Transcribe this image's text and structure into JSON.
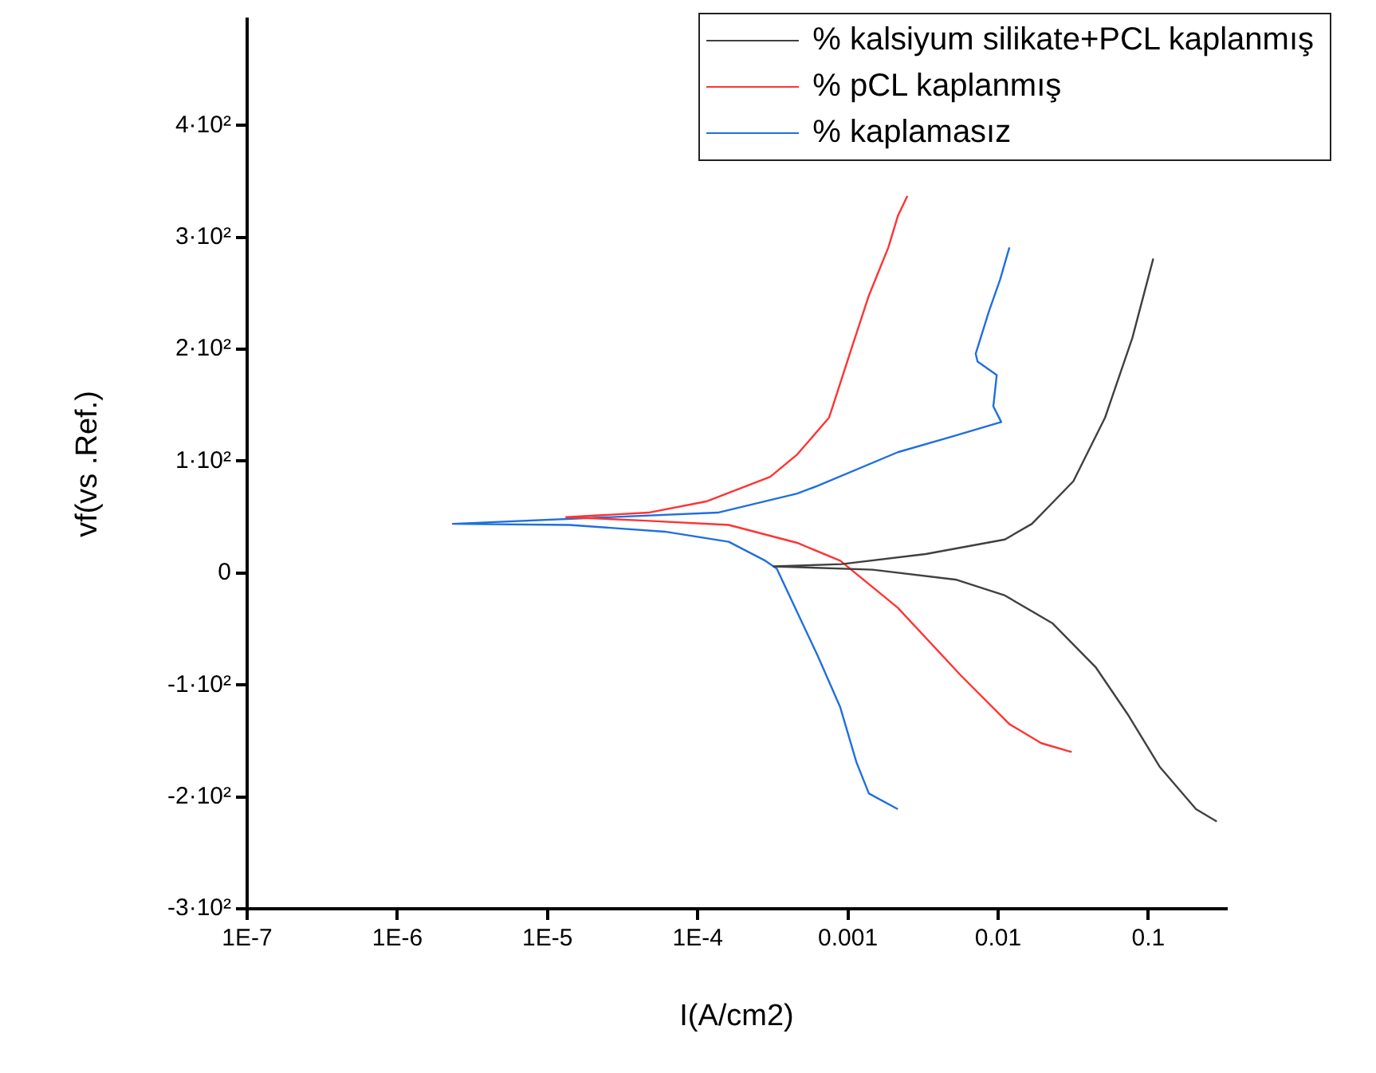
{
  "chart_data": {
    "type": "line",
    "xlabel": "I(A/cm2)",
    "ylabel": "vf(vs .Ref.)",
    "log": "x",
    "grid": false,
    "legend": "top right",
    "marker": "none",
    "line_style": "solid",
    "xlim": [
      1e-07,
      0.33
    ],
    "ylim": [
      -300,
      495
    ],
    "xticks": [
      {
        "value": 1e-07,
        "label": "1E-7"
      },
      {
        "value": 1e-06,
        "label": "1E-6"
      },
      {
        "value": 1e-05,
        "label": "1E-5"
      },
      {
        "value": 0.0001,
        "label": "1E-4"
      },
      {
        "value": 0.001,
        "label": "0.001"
      },
      {
        "value": 0.01,
        "label": "0.01"
      },
      {
        "value": 0.1,
        "label": "0.1"
      }
    ],
    "yticks": [
      {
        "value": -300,
        "label": "-3·10²"
      },
      {
        "value": -200,
        "label": "-2·10²"
      },
      {
        "value": -100,
        "label": "-1·10²"
      },
      0,
      {
        "value": 100,
        "label": "1·10²"
      },
      {
        "value": 200,
        "label": "2·10²"
      },
      {
        "value": 300,
        "label": "3·10²"
      },
      {
        "value": 400,
        "label": "4·10²"
      }
    ],
    "series": [
      {
        "name": "% kalsiyum silikate+PCL kaplanmış",
        "color": "#404040",
        "x": [
          0.108,
          0.0783,
          0.0516,
          0.0317,
          0.0168,
          0.0111,
          0.0033,
          0.00091,
          0.00032,
          0.00146,
          0.0053,
          0.0111,
          0.0231,
          0.0446,
          0.0728,
          0.119,
          0.208,
          0.286
        ],
        "values": [
          281,
          210,
          139,
          82,
          44,
          30,
          17,
          8,
          6,
          3,
          -6,
          -20,
          -45,
          -84,
          -126,
          -173,
          -211,
          -222
        ]
      },
      {
        "name": "% pCL kaplanmış",
        "color": "#ff3333",
        "x": [
          0.00249,
          0.00215,
          0.00186,
          0.00138,
          0.00103,
          0.00075,
          0.00046,
          0.000304,
          0.000114,
          4.7e-05,
          1.33e-05,
          4.2e-05,
          0.000161,
          0.00046,
          0.00089,
          0.00215,
          0.0057,
          0.0119,
          0.0194,
          0.0309
        ],
        "values": [
          337,
          319,
          291,
          248,
          196,
          139,
          106,
          86,
          64,
          54,
          50,
          47,
          43,
          27,
          11,
          -31,
          -92,
          -135,
          -152,
          -160
        ]
      },
      {
        "name": "% kaplamasız",
        "color": "#1f6fe0",
        "x": [
          0.0119,
          0.0103,
          0.0087,
          0.0071,
          0.0073,
          0.0098,
          0.0093,
          0.0105,
          0.00494,
          0.00215,
          0.00063,
          0.00046,
          0.000136,
          2.34e-06,
          1.4e-05,
          6.05e-05,
          0.000161,
          0.000282,
          0.000336,
          0.00046,
          0.00063,
          0.00089,
          0.00114,
          0.00138,
          0.00215
        ],
        "values": [
          291,
          262,
          234,
          196,
          189,
          177,
          149,
          135,
          122,
          108,
          78,
          71,
          54,
          44,
          43,
          37,
          28,
          11,
          4,
          -35,
          -74,
          -120,
          -169,
          -197,
          -211
        ]
      }
    ]
  }
}
